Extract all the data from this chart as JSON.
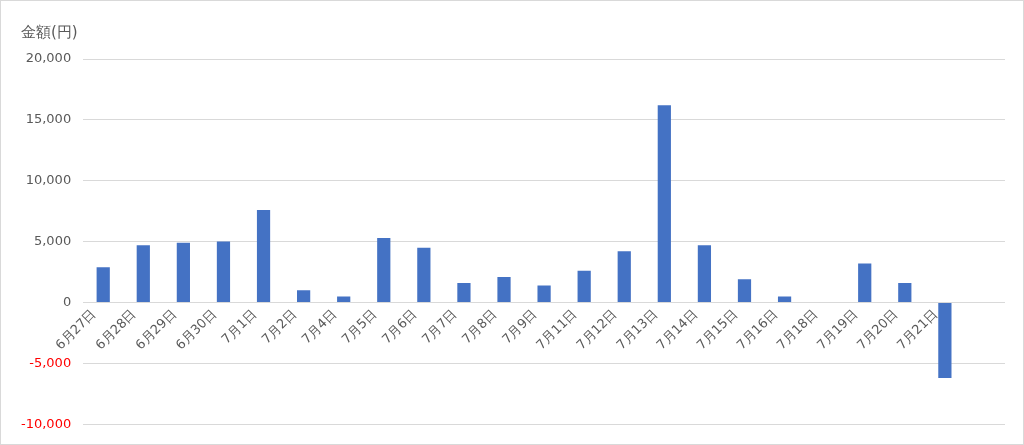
{
  "chart_data": {
    "type": "bar",
    "ylabel": "金額(円)",
    "categories": [
      "6月27日",
      "6月28日",
      "6月29日",
      "6月30日",
      "7月1日",
      "7月2日",
      "7月4日",
      "7月5日",
      "7月6日",
      "7月7日",
      "7月8日",
      "7月9日",
      "7月11日",
      "7月12日",
      "7月13日",
      "7月14日",
      "7月15日",
      "7月16日",
      "7月18日",
      "7月19日",
      "7月20日",
      "7月21日",
      null
    ],
    "values": [
      2900,
      4700,
      4900,
      5000,
      7600,
      1000,
      500,
      5300,
      4500,
      1600,
      2100,
      1400,
      2600,
      4200,
      16200,
      4700,
      1900,
      500,
      0,
      3200,
      1600,
      -6200,
      null
    ],
    "color": "#4472c4",
    "ylim": [
      -10000,
      20000
    ],
    "yticks": [
      {
        "value": -10000,
        "label": "-10,000"
      },
      {
        "value": -5000,
        "label": "-5,000"
      },
      {
        "value": 0,
        "label": "0"
      },
      {
        "value": 5000,
        "label": "5,000"
      },
      {
        "value": 10000,
        "label": "10,000"
      },
      {
        "value": 15000,
        "label": "15,000"
      },
      {
        "value": 20000,
        "label": "20,000"
      }
    ],
    "grid": "y",
    "legend": false
  }
}
